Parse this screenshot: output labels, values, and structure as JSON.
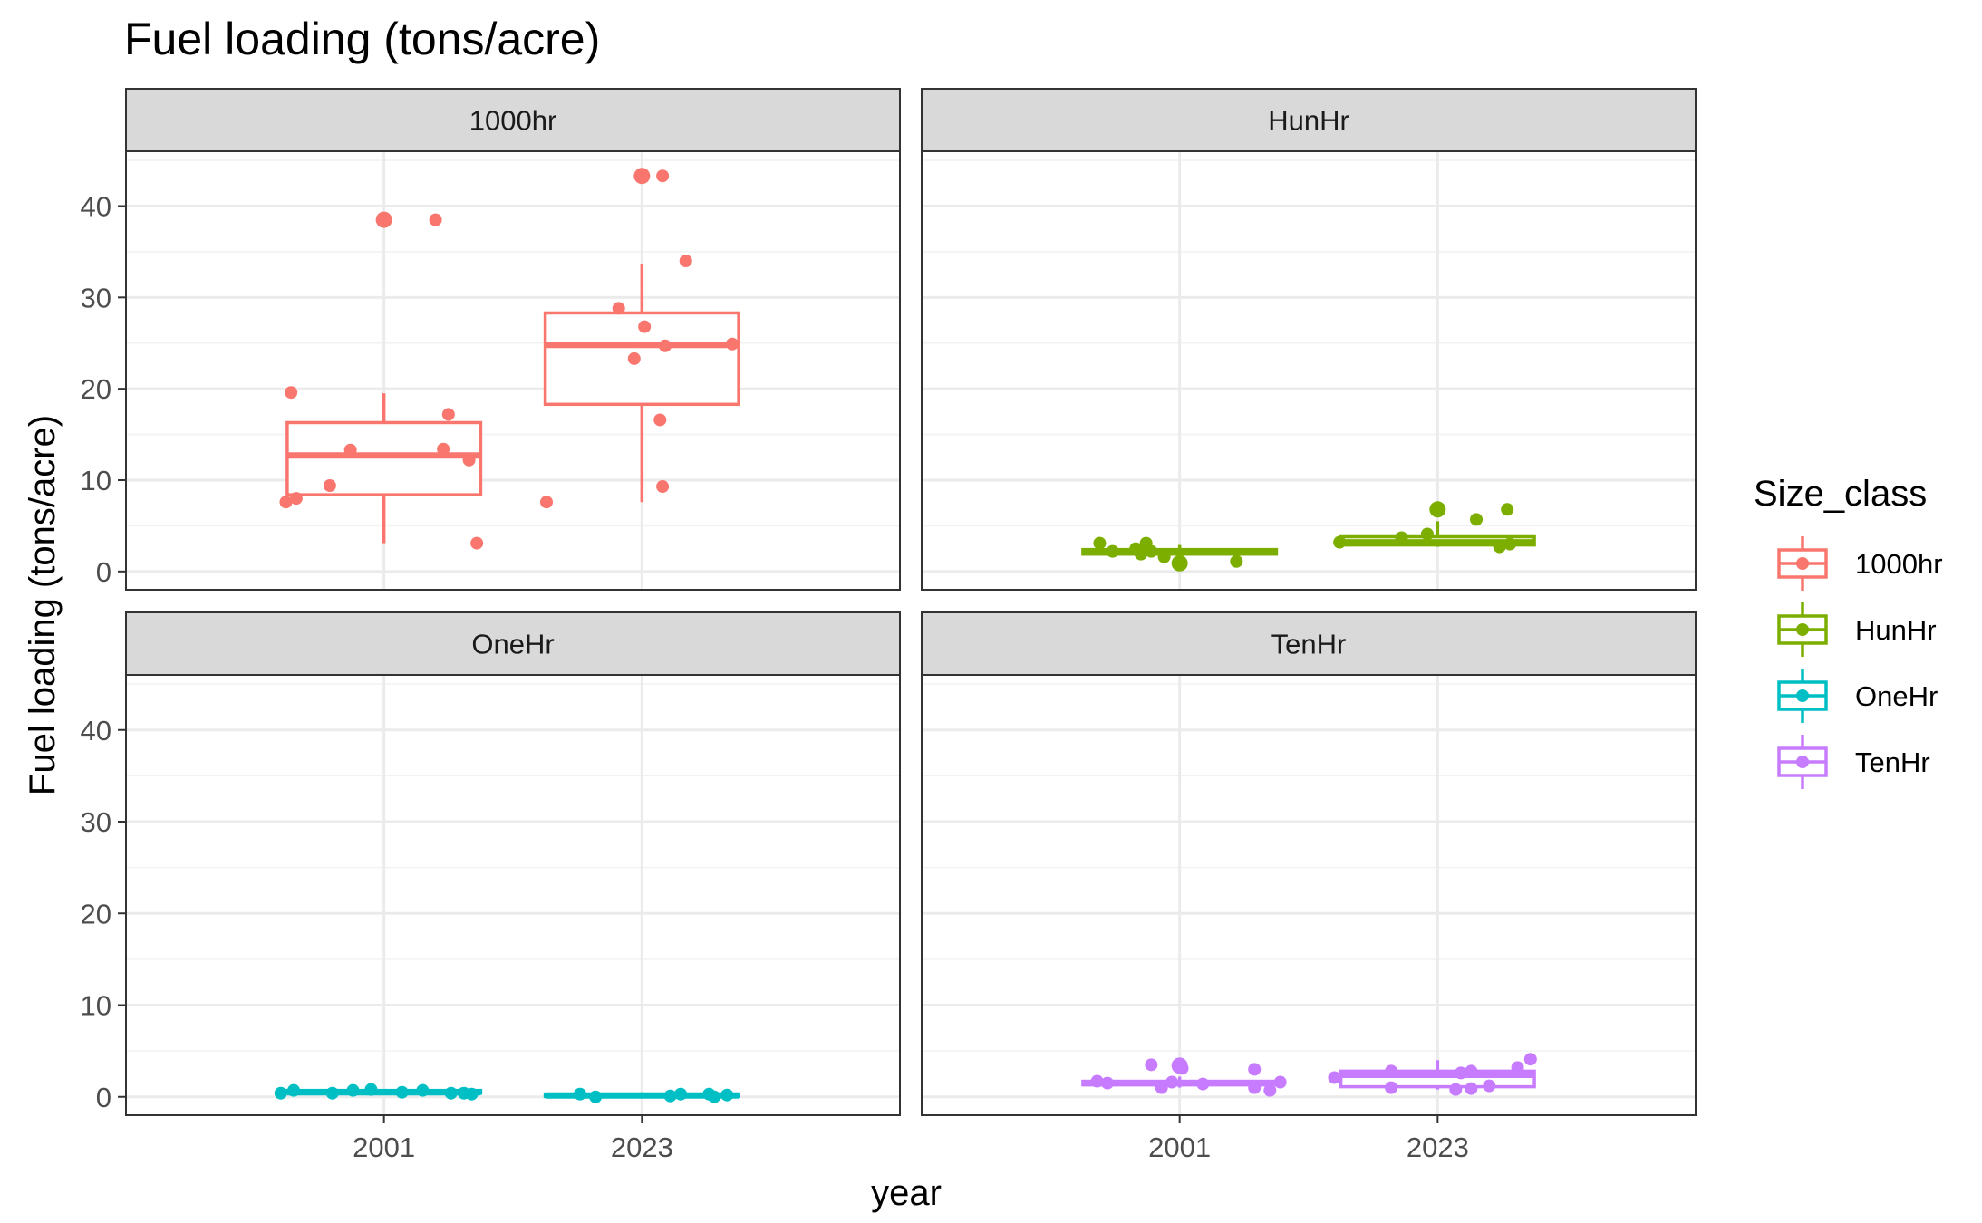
{
  "chart_data": {
    "type": "box",
    "title": "Fuel loading (tons/acre)",
    "xlabel": "year",
    "ylabel": "Fuel loading (tons/acre)",
    "categories": [
      "2001",
      "2023"
    ],
    "ylim": [
      -2,
      46
    ],
    "yticks": [
      0,
      10,
      20,
      30,
      40
    ],
    "legend": {
      "title": "Size_class",
      "position": "right",
      "entries": [
        "1000hr",
        "HunHr",
        "OneHr",
        "TenHr"
      ]
    },
    "colors": {
      "1000hr": "#F8766D",
      "HunHr": "#7CAE00",
      "OneHr": "#00BFC4",
      "TenHr": "#C77CFF"
    },
    "panels": [
      {
        "name": "1000hr",
        "boxes": [
          {
            "x": "2001",
            "min": 3.1,
            "q1": 8.4,
            "median": 12.7,
            "q3": 16.3,
            "max": 19.5,
            "outliers": [
              38.5
            ],
            "points": [
              {
                "dx": -0.38,
                "y": 7.6
              },
              {
                "dx": -0.36,
                "y": 19.6
              },
              {
                "dx": -0.34,
                "y": 8.0
              },
              {
                "dx": -0.21,
                "y": 9.4
              },
              {
                "dx": -0.13,
                "y": 13.3
              },
              {
                "dx": 0.2,
                "y": 38.5
              },
              {
                "dx": 0.23,
                "y": 13.4
              },
              {
                "dx": 0.25,
                "y": 17.2
              },
              {
                "dx": 0.33,
                "y": 12.2
              },
              {
                "dx": 0.36,
                "y": 3.1
              }
            ]
          },
          {
            "x": "2023",
            "min": 7.6,
            "q1": 18.3,
            "median": 24.8,
            "q3": 28.3,
            "max": 33.7,
            "outliers": [
              43.3
            ],
            "points": [
              {
                "dx": -0.37,
                "y": 7.6
              },
              {
                "dx": -0.09,
                "y": 28.8
              },
              {
                "dx": -0.03,
                "y": 23.3
              },
              {
                "dx": 0.01,
                "y": 26.8
              },
              {
                "dx": 0.07,
                "y": 16.6
              },
              {
                "dx": 0.08,
                "y": 9.3
              },
              {
                "dx": 0.09,
                "y": 24.7
              },
              {
                "dx": 0.08,
                "y": 43.3
              },
              {
                "dx": 0.17,
                "y": 34.0
              },
              {
                "dx": 0.35,
                "y": 24.9
              }
            ]
          }
        ]
      },
      {
        "name": "HunHr",
        "boxes": [
          {
            "x": "2001",
            "min": 1.0,
            "q1": 1.9,
            "median": 2.1,
            "q3": 2.4,
            "max": 2.9,
            "outliers": [
              0.9
            ],
            "points": [
              {
                "dx": -0.31,
                "y": 3.1
              },
              {
                "dx": -0.26,
                "y": 2.2
              },
              {
                "dx": -0.17,
                "y": 2.5
              },
              {
                "dx": -0.15,
                "y": 1.9
              },
              {
                "dx": -0.13,
                "y": 3.1
              },
              {
                "dx": -0.11,
                "y": 2.2
              },
              {
                "dx": -0.06,
                "y": 1.6
              },
              {
                "dx": 0.22,
                "y": 1.1
              }
            ]
          },
          {
            "x": "2023",
            "min": 2.7,
            "q1": 2.9,
            "median": 3.2,
            "q3": 3.8,
            "max": 5.5,
            "outliers": [
              6.8
            ],
            "points": [
              {
                "dx": -0.38,
                "y": 3.2
              },
              {
                "dx": -0.14,
                "y": 3.7
              },
              {
                "dx": -0.04,
                "y": 4.1
              },
              {
                "dx": 0.0,
                "y": 6.8
              },
              {
                "dx": 0.15,
                "y": 5.7
              },
              {
                "dx": 0.24,
                "y": 2.7
              },
              {
                "dx": 0.27,
                "y": 6.8
              },
              {
                "dx": 0.28,
                "y": 3.0
              }
            ]
          }
        ]
      },
      {
        "name": "OneHr",
        "boxes": [
          {
            "x": "2001",
            "min": 0.3,
            "q1": 0.4,
            "median": 0.5,
            "q3": 0.7,
            "max": 0.8,
            "outliers": [],
            "points": [
              {
                "dx": -0.4,
                "y": 0.4
              },
              {
                "dx": -0.35,
                "y": 0.7
              },
              {
                "dx": -0.2,
                "y": 0.4
              },
              {
                "dx": -0.12,
                "y": 0.7
              },
              {
                "dx": -0.05,
                "y": 0.8
              },
              {
                "dx": 0.07,
                "y": 0.5
              },
              {
                "dx": 0.15,
                "y": 0.7
              },
              {
                "dx": 0.26,
                "y": 0.4
              },
              {
                "dx": 0.31,
                "y": 0.4
              },
              {
                "dx": 0.34,
                "y": 0.3
              }
            ]
          },
          {
            "x": "2023",
            "min": 0.0,
            "q1": 0.05,
            "median": 0.15,
            "q3": 0.3,
            "max": 0.5,
            "outliers": [],
            "points": [
              {
                "dx": -0.24,
                "y": 0.3
              },
              {
                "dx": -0.18,
                "y": 0.0
              },
              {
                "dx": 0.11,
                "y": 0.1
              },
              {
                "dx": 0.15,
                "y": 0.3
              },
              {
                "dx": 0.26,
                "y": 0.3
              },
              {
                "dx": 0.28,
                "y": 0.0
              },
              {
                "dx": 0.33,
                "y": 0.2
              }
            ]
          }
        ]
      },
      {
        "name": "TenHr",
        "boxes": [
          {
            "x": "2001",
            "min": 1.0,
            "q1": 1.3,
            "median": 1.5,
            "q3": 1.7,
            "max": 2.2,
            "outliers": [
              3.4
            ],
            "points": [
              {
                "dx": -0.32,
                "y": 1.7
              },
              {
                "dx": -0.28,
                "y": 1.5
              },
              {
                "dx": -0.11,
                "y": 3.5
              },
              {
                "dx": -0.07,
                "y": 1.0
              },
              {
                "dx": -0.03,
                "y": 1.6
              },
              {
                "dx": 0.0,
                "y": 3.4
              },
              {
                "dx": 0.01,
                "y": 3.1
              },
              {
                "dx": 0.09,
                "y": 1.4
              },
              {
                "dx": 0.29,
                "y": 3.0
              },
              {
                "dx": 0.29,
                "y": 1.0
              },
              {
                "dx": 0.35,
                "y": 0.7
              },
              {
                "dx": 0.39,
                "y": 1.6
              }
            ]
          },
          {
            "x": "2023",
            "min": 0.8,
            "q1": 1.1,
            "median": 2.4,
            "q3": 2.8,
            "max": 4.0,
            "outliers": [],
            "points": [
              {
                "dx": -0.4,
                "y": 2.1
              },
              {
                "dx": -0.18,
                "y": 2.8
              },
              {
                "dx": -0.18,
                "y": 1.0
              },
              {
                "dx": 0.07,
                "y": 0.8
              },
              {
                "dx": 0.09,
                "y": 2.6
              },
              {
                "dx": 0.13,
                "y": 2.8
              },
              {
                "dx": 0.13,
                "y": 0.9
              },
              {
                "dx": 0.2,
                "y": 1.2
              },
              {
                "dx": 0.31,
                "y": 3.2
              },
              {
                "dx": 0.36,
                "y": 4.1
              }
            ]
          }
        ]
      }
    ]
  }
}
